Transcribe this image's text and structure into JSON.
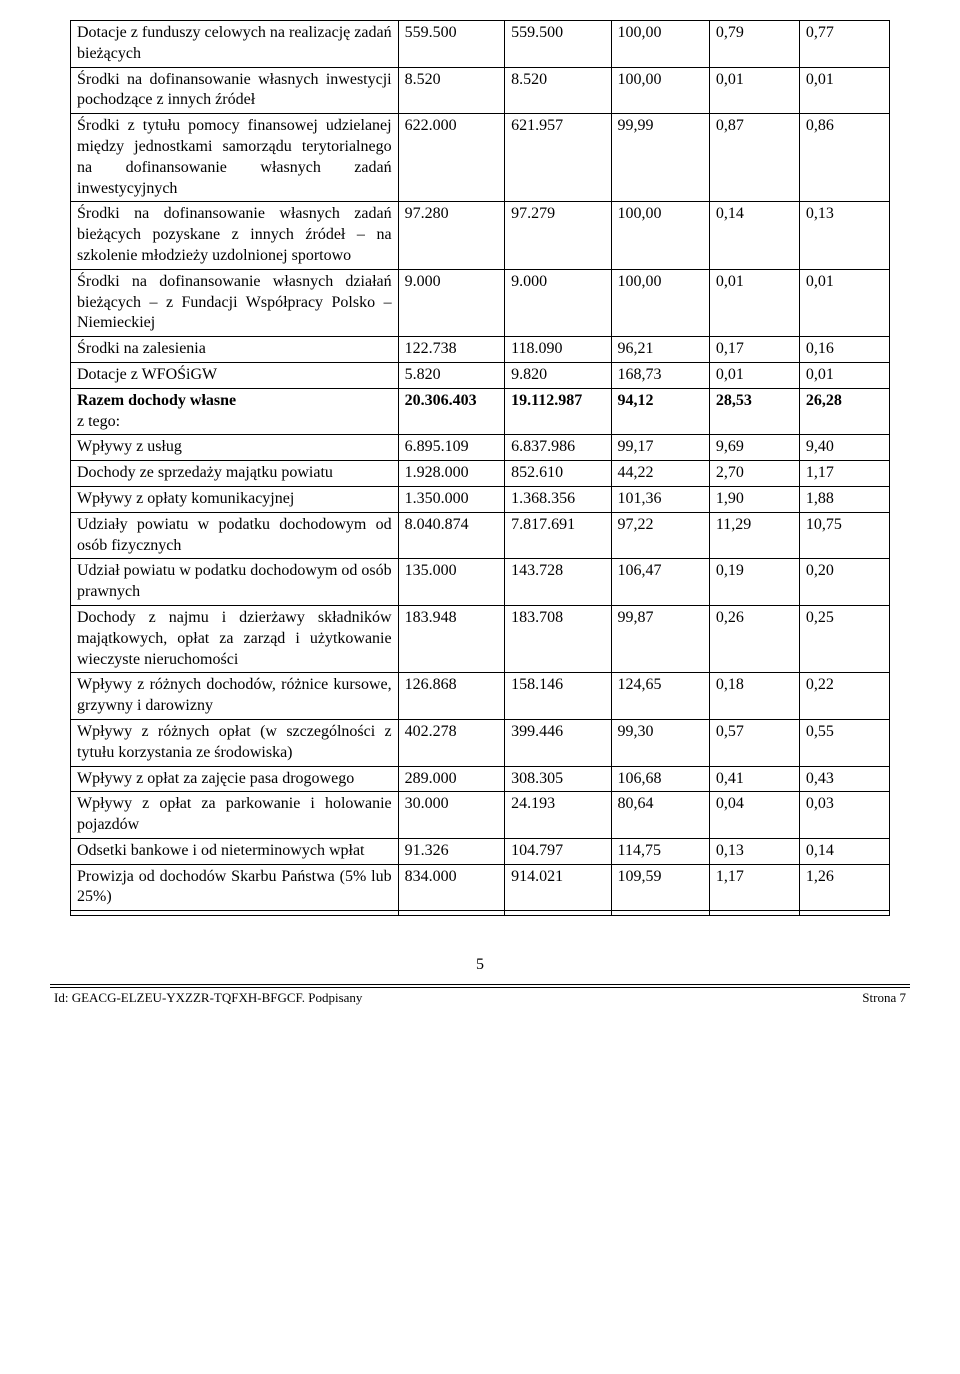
{
  "table": {
    "col_widths": [
      "40%",
      "13%",
      "13%",
      "12%",
      "11%",
      "11%"
    ],
    "rows": [
      {
        "cells": [
          "Dotacje z funduszy celowych na realizację zadań bieżących",
          "559.500",
          "559.500",
          "100,00",
          "0,79",
          "0,77"
        ]
      },
      {
        "cells": [
          "Środki na dofinansowanie własnych inwestycji pochodzące z innych źródeł",
          "8.520",
          "8.520",
          "100,00",
          "0,01",
          "0,01"
        ]
      },
      {
        "cells": [
          "Środki z tytułu pomocy finansowej udzielanej między jednostkami samorządu terytorialnego na dofinansowanie własnych zadań inwestycyjnych",
          "622.000",
          "621.957",
          "99,99",
          "0,87",
          "0,86"
        ]
      },
      {
        "cells": [
          "Środki na dofinansowanie własnych zadań bieżących pozyskane z innych źródeł – na szkolenie młodzieży uzdolnionej sportowo",
          "97.280",
          "97.279",
          "100,00",
          "0,14",
          "0,13"
        ]
      },
      {
        "cells": [
          "Środki na dofinansowanie własnych działań bieżących – z Fundacji Współpracy Polsko – Niemieckiej",
          "9.000",
          "9.000",
          "100,00",
          "0,01",
          "0,01"
        ]
      },
      {
        "cells": [
          "Środki na zalesienia",
          "122.738",
          "118.090",
          "96,21",
          "0,17",
          "0,16"
        ]
      },
      {
        "cells": [
          "Dotacje z WFOŚiGW",
          "5.820",
          "9.820",
          "168,73",
          "0,01",
          "0,01"
        ]
      },
      {
        "cells": [
          "Razem dochody własne\nz tego:",
          "20.306.403",
          "19.112.987",
          "94,12",
          "28,53",
          "26,28"
        ],
        "bold": true,
        "first_plain_tail": true
      },
      {
        "cells": [
          "Wpływy z usług",
          "6.895.109",
          "6.837.986",
          "99,17",
          "9,69",
          "9,40"
        ]
      },
      {
        "cells": [
          "Dochody ze sprzedaży majątku powiatu",
          "1.928.000",
          "852.610",
          "44,22",
          "2,70",
          "1,17"
        ]
      },
      {
        "cells": [
          "Wpływy z opłaty komunikacyjnej",
          "1.350.000",
          "1.368.356",
          "101,36",
          "1,90",
          "1,88"
        ]
      },
      {
        "cells": [
          "Udziały powiatu w podatku dochodowym od osób fizycznych",
          "8.040.874",
          "7.817.691",
          "97,22",
          "11,29",
          "10,75"
        ]
      },
      {
        "cells": [
          "Udział powiatu w podatku dochodowym od osób prawnych",
          "135.000",
          "143.728",
          "106,47",
          "0,19",
          "0,20"
        ]
      },
      {
        "cells": [
          "Dochody z najmu i dzierżawy składników majątkowych, opłat za zarząd i użytkowanie wieczyste nieruchomości",
          "183.948",
          "183.708",
          "99,87",
          "0,26",
          "0,25"
        ]
      },
      {
        "cells": [
          "Wpływy z różnych dochodów, różnice kursowe, grzywny i darowizny",
          "126.868",
          "158.146",
          "124,65",
          "0,18",
          "0,22"
        ]
      },
      {
        "cells": [
          "Wpływy z różnych opłat (w szczególności z tytułu korzystania ze środowiska)",
          "402.278",
          "399.446",
          "99,30",
          "0,57",
          "0,55"
        ]
      },
      {
        "cells": [
          "Wpływy z opłat za zajęcie pasa drogowego",
          "289.000",
          "308.305",
          "106,68",
          "0,41",
          "0,43"
        ]
      },
      {
        "cells": [
          "Wpływy z opłat za parkowanie i holowanie pojazdów",
          "30.000",
          "24.193",
          "80,64",
          "0,04",
          "0,03"
        ]
      },
      {
        "cells": [
          "Odsetki bankowe i od nieterminowych  wpłat",
          "91.326",
          "104.797",
          "114,75",
          "0,13",
          "0,14"
        ]
      },
      {
        "cells": [
          "Prowizja od dochodów Skarbu Państwa (5%  lub 25%)",
          "834.000",
          "914.021",
          "109,59",
          "1,17",
          "1,26"
        ]
      },
      {
        "cells": [
          "",
          "",
          "",
          "",
          "",
          ""
        ]
      }
    ]
  },
  "page_number": "5",
  "footer": {
    "left": "Id: GEACG-ELZEU-YXZZR-TQFXH-BFGCF. Podpisany",
    "right": "Strona 7"
  }
}
